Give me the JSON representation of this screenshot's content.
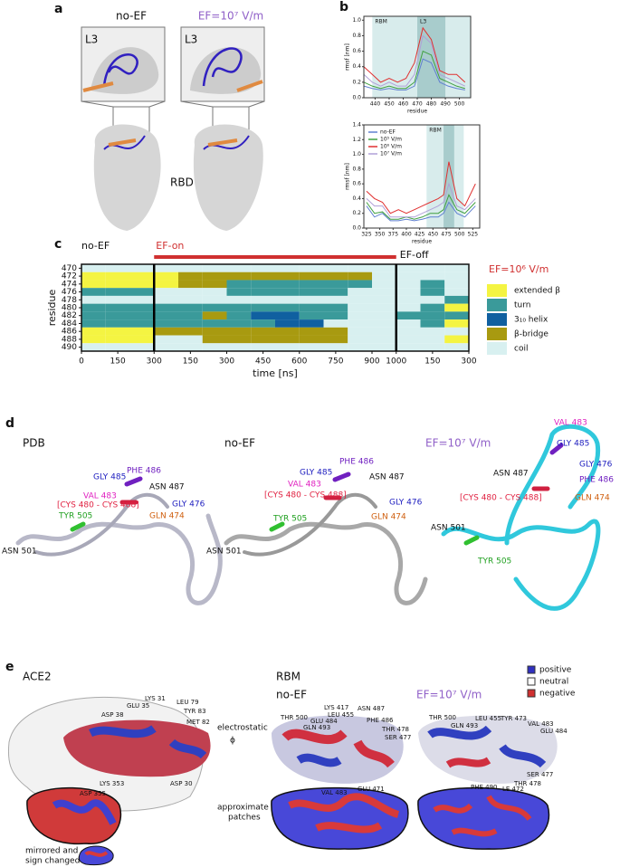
{
  "figure": {
    "a": {
      "letter": "a",
      "left_title": "no-EF",
      "right_title": "EF=10⁷ V/m",
      "left_inset": "L3",
      "right_inset": "L3",
      "caption": "RBD"
    },
    "b": {
      "letter": "b"
    },
    "c": {
      "letter": "c"
    },
    "d": {
      "letter": "d",
      "titles": [
        "PDB",
        "no-EF",
        "EF=10⁷ V/m"
      ],
      "labels": [
        [
          "PHE 486",
          "GLY 485",
          "ASN 487",
          "VAL 483",
          "[CYS 480 - CYS 488]",
          "GLY 476",
          "GLN 474",
          "TYR 505",
          "ASN 501"
        ],
        [
          "PHE 486",
          "GLY 485",
          "ASN 487",
          "VAL 483",
          "[CYS 480 - CYS 488]",
          "GLY 476",
          "GLN 474",
          "TYR 505",
          "ASN 501"
        ],
        [
          "VAL 483",
          "GLY 485",
          "GLY 476",
          "ASN 487",
          "PHE 486",
          "[CYS 480 - CYS 488]",
          "GLN 474",
          "ASN 501",
          "TYR 505"
        ]
      ]
    },
    "e": {
      "letter": "e",
      "ace2": "ACE2",
      "rbm": "RBM",
      "no_ef": "no-EF",
      "ef": "EF=10⁷ V/m",
      "legend": [
        "positive",
        "neutral",
        "negative"
      ],
      "electrostatic": "electrostatic",
      "phi": "ϕ",
      "patches": [
        "approximate",
        "patches"
      ],
      "mirrored": [
        "mirrored and",
        "sign changed"
      ],
      "ace2_labels": [
        "LYS 31",
        "GLU 35",
        "LEU 79",
        "TYR 83",
        "ASP 38",
        "MET 82",
        "LYS 353",
        "ASP 30",
        "ASP 355"
      ],
      "noef_labels": [
        "THR 500",
        "LYS 417",
        "LEU 455",
        "GLU 484",
        "GLN 493",
        "ASN 487",
        "PHE 486",
        "THR 478",
        "SER 477",
        "GLU 471",
        "VAL 483"
      ],
      "ef_labels": [
        "THR 500",
        "GLN 493",
        "LEU 455",
        "TYR 473",
        "VAL 483",
        "GLU 484",
        "SER 477",
        "THR 478",
        "PHE 490",
        "LE 472"
      ]
    }
  },
  "chart_data": [
    {
      "type": "line",
      "x_label": "residue",
      "y_label": "rmsf [nm]",
      "x": [
        432,
        438,
        444,
        450,
        456,
        462,
        468,
        474,
        480,
        486,
        492,
        498,
        504
      ],
      "series": [
        {
          "color": "#6080d0",
          "values": [
            0.15,
            0.12,
            0.1,
            0.12,
            0.1,
            0.1,
            0.15,
            0.5,
            0.45,
            0.2,
            0.15,
            0.12,
            0.1
          ]
        },
        {
          "color": "#40a040",
          "values": [
            0.2,
            0.15,
            0.12,
            0.15,
            0.12,
            0.12,
            0.2,
            0.6,
            0.55,
            0.25,
            0.2,
            0.15,
            0.12
          ]
        },
        {
          "color": "#e03030",
          "values": [
            0.4,
            0.3,
            0.2,
            0.25,
            0.2,
            0.25,
            0.45,
            0.9,
            0.75,
            0.35,
            0.3,
            0.3,
            0.2
          ]
        },
        {
          "color": "#b0a0d8",
          "values": [
            0.3,
            0.2,
            0.15,
            0.2,
            0.15,
            0.15,
            0.3,
            0.8,
            0.7,
            0.3,
            0.25,
            0.2,
            0.15
          ]
        }
      ],
      "xlim": [
        432,
        508
      ],
      "ylim": [
        0,
        1.05
      ],
      "xticks": [
        440,
        450,
        460,
        470,
        480,
        490,
        500
      ],
      "yticks": [
        {
          "value": 0,
          "label": "0.0"
        },
        0.2,
        0.4,
        0.6,
        0.8,
        {
          "value": 1,
          "label": "1.0"
        }
      ],
      "bands": [
        {
          "name": "RBM",
          "range": [
            438,
            508
          ]
        },
        {
          "name": "L3",
          "range": [
            470,
            490
          ]
        }
      ]
    },
    {
      "type": "line",
      "x_label": "residue",
      "y_label": "rmsf [nm]",
      "x": [
        325,
        340,
        355,
        370,
        385,
        400,
        415,
        430,
        445,
        460,
        470,
        480,
        495,
        510,
        530
      ],
      "series": [
        {
          "name": "no-EF",
          "color": "#6080d0",
          "values": [
            0.3,
            0.15,
            0.2,
            0.1,
            0.1,
            0.12,
            0.1,
            0.12,
            0.15,
            0.15,
            0.2,
            0.35,
            0.2,
            0.15,
            0.3
          ]
        },
        {
          "name": "10⁵ V/m",
          "color": "#40a040",
          "values": [
            0.35,
            0.2,
            0.22,
            0.12,
            0.12,
            0.15,
            0.12,
            0.15,
            0.2,
            0.2,
            0.25,
            0.45,
            0.25,
            0.2,
            0.35
          ]
        },
        {
          "name": "10⁶ V/m",
          "color": "#e03030",
          "values": [
            0.5,
            0.4,
            0.35,
            0.2,
            0.25,
            0.2,
            0.25,
            0.3,
            0.35,
            0.4,
            0.45,
            0.9,
            0.4,
            0.3,
            0.6
          ]
        },
        {
          "name": "10⁷ V/m",
          "color": "#b0a0d8",
          "values": [
            0.4,
            0.3,
            0.3,
            0.15,
            0.15,
            0.15,
            0.15,
            0.2,
            0.25,
            0.3,
            0.35,
            0.6,
            0.3,
            0.25,
            0.4
          ]
        }
      ],
      "xlim": [
        320,
        538
      ],
      "ylim": [
        0,
        1.4
      ],
      "xticks": [
        325,
        350,
        375,
        400,
        425,
        450,
        475,
        500,
        525
      ],
      "yticks": [
        {
          "value": 0,
          "label": "0.0"
        },
        0.2,
        0.4,
        0.6,
        0.8,
        {
          "value": 1,
          "label": "1.0"
        },
        1.2,
        1.4
      ],
      "bands": [
        {
          "name": "RBM",
          "range": [
            438,
            508
          ]
        },
        {
          "range": [
            470,
            490
          ]
        }
      ]
    },
    {
      "type": "heatmap",
      "x_label": "time [ns]",
      "y_label": "residue",
      "field_label": "EF=10⁶ V/m",
      "phases": [
        {
          "name": "no-EF",
          "range": [
            0,
            300
          ]
        },
        {
          "name": "EF-on",
          "range": [
            300,
            1300
          ],
          "color": "#d03030"
        },
        {
          "name": "EF-off",
          "range": [
            1300,
            1600
          ]
        }
      ],
      "xlim": [
        0,
        1600
      ],
      "ylim": [
        469,
        491
      ],
      "xticks": [
        0,
        150,
        300,
        {
          "value": 450,
          "label": "150"
        },
        {
          "value": 600,
          "label": "300"
        },
        {
          "value": 750,
          "label": "450"
        },
        {
          "value": 900,
          "label": "600"
        },
        {
          "value": 1050,
          "label": "750"
        },
        {
          "value": 1200,
          "label": "900"
        },
        {
          "value": 1300,
          "label": "1000"
        },
        {
          "value": 1450,
          "label": "150"
        },
        {
          "value": 1600,
          "label": "300"
        }
      ],
      "yticks": [
        470,
        472,
        474,
        476,
        478,
        480,
        482,
        484,
        486,
        488,
        490
      ],
      "rows": [
        470,
        472,
        474,
        476,
        478,
        480,
        482,
        484,
        486,
        488,
        490
      ],
      "time_edges": [
        0,
        100,
        200,
        300,
        400,
        500,
        600,
        700,
        800,
        900,
        1000,
        1100,
        1200,
        1300,
        1400,
        1500,
        1600
      ],
      "states": [
        [
          4,
          4,
          4,
          4,
          4,
          4,
          4,
          4,
          4,
          4,
          4,
          4,
          4,
          4,
          4,
          4
        ],
        [
          0,
          0,
          0,
          0,
          3,
          3,
          3,
          3,
          3,
          3,
          3,
          3,
          4,
          4,
          4,
          4
        ],
        [
          0,
          0,
          0,
          0,
          3,
          3,
          1,
          1,
          1,
          1,
          1,
          1,
          4,
          4,
          1,
          4
        ],
        [
          1,
          1,
          1,
          4,
          4,
          4,
          1,
          1,
          1,
          1,
          1,
          4,
          4,
          4,
          1,
          4
        ],
        [
          4,
          4,
          4,
          4,
          4,
          4,
          4,
          4,
          4,
          4,
          4,
          4,
          4,
          4,
          4,
          1
        ],
        [
          1,
          1,
          1,
          1,
          1,
          1,
          1,
          1,
          1,
          1,
          1,
          4,
          4,
          4,
          1,
          0
        ],
        [
          1,
          1,
          1,
          1,
          1,
          3,
          1,
          2,
          2,
          1,
          1,
          4,
          4,
          1,
          1,
          1
        ],
        [
          1,
          1,
          1,
          1,
          1,
          1,
          1,
          1,
          2,
          2,
          4,
          4,
          4,
          4,
          1,
          0
        ],
        [
          0,
          0,
          0,
          3,
          3,
          3,
          3,
          3,
          3,
          3,
          3,
          4,
          4,
          4,
          4,
          4
        ],
        [
          0,
          0,
          0,
          4,
          4,
          3,
          3,
          3,
          3,
          3,
          3,
          4,
          4,
          4,
          4,
          0
        ],
        [
          4,
          4,
          4,
          4,
          4,
          4,
          4,
          4,
          4,
          4,
          4,
          4,
          4,
          4,
          4,
          4
        ]
      ],
      "legend": [
        {
          "name": "extended β",
          "color": "#f4f442"
        },
        {
          "name": "turn",
          "color": "#3a9a9a"
        },
        {
          "name": "3₁₀ helix",
          "color": "#1060a0"
        },
        {
          "name": "β-bridge",
          "color": "#a89a10"
        },
        {
          "name": "coil",
          "color": "#d8f0f0"
        }
      ]
    }
  ]
}
